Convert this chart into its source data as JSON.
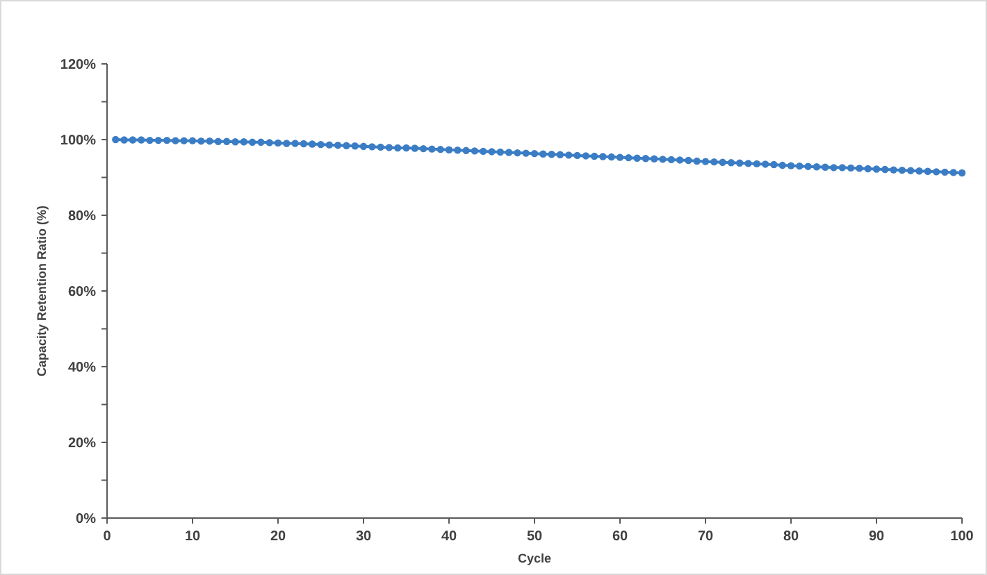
{
  "chart_data": {
    "type": "line",
    "xlabel": "Cycle",
    "ylabel": "Capacity Retention Ratio (%)",
    "x": [
      1,
      2,
      3,
      4,
      5,
      6,
      7,
      8,
      9,
      10,
      11,
      12,
      13,
      14,
      15,
      16,
      17,
      18,
      19,
      20,
      21,
      22,
      23,
      24,
      25,
      26,
      27,
      28,
      29,
      30,
      31,
      32,
      33,
      34,
      35,
      36,
      37,
      38,
      39,
      40,
      41,
      42,
      43,
      44,
      45,
      46,
      47,
      48,
      49,
      50,
      51,
      52,
      53,
      54,
      55,
      56,
      57,
      58,
      59,
      60,
      61,
      62,
      63,
      64,
      65,
      66,
      67,
      68,
      69,
      70,
      71,
      72,
      73,
      74,
      75,
      76,
      77,
      78,
      79,
      80,
      81,
      82,
      83,
      84,
      85,
      86,
      87,
      88,
      89,
      90,
      91,
      92,
      93,
      94,
      95,
      96,
      97,
      98,
      99,
      100
    ],
    "series": [
      {
        "color": "#3b7dc4",
        "values": [
          100.0,
          99.9,
          99.9,
          99.9,
          99.8,
          99.8,
          99.8,
          99.7,
          99.7,
          99.7,
          99.6,
          99.6,
          99.5,
          99.5,
          99.4,
          99.4,
          99.3,
          99.3,
          99.2,
          99.1,
          99.0,
          99.0,
          98.9,
          98.8,
          98.7,
          98.6,
          98.5,
          98.4,
          98.3,
          98.2,
          98.1,
          98.0,
          97.9,
          97.8,
          97.8,
          97.7,
          97.6,
          97.5,
          97.4,
          97.3,
          97.2,
          97.1,
          97.0,
          96.9,
          96.8,
          96.7,
          96.6,
          96.5,
          96.4,
          96.3,
          96.2,
          96.1,
          96.0,
          95.9,
          95.8,
          95.7,
          95.6,
          95.5,
          95.4,
          95.3,
          95.2,
          95.1,
          95.0,
          94.9,
          94.8,
          94.7,
          94.6,
          94.5,
          94.3,
          94.2,
          94.1,
          94.0,
          93.9,
          93.8,
          93.7,
          93.6,
          93.5,
          93.4,
          93.2,
          93.1,
          93.0,
          92.9,
          92.8,
          92.7,
          92.6,
          92.6,
          92.5,
          92.4,
          92.3,
          92.2,
          92.1,
          92.0,
          91.9,
          91.8,
          91.7,
          91.6,
          91.5,
          91.4,
          91.3,
          91.2
        ]
      }
    ],
    "xlim": [
      0,
      100
    ],
    "xticks": [
      0,
      10,
      20,
      30,
      40,
      50,
      60,
      70,
      80,
      90,
      100
    ],
    "ylim": [
      0,
      120
    ],
    "yticks": [
      {
        "value": 0,
        "label": "0%"
      },
      {
        "value": 10,
        "label": null
      },
      {
        "value": 20,
        "label": "20%"
      },
      {
        "value": 30,
        "label": null
      },
      {
        "value": 40,
        "label": "40%"
      },
      {
        "value": 50,
        "label": null
      },
      {
        "value": 60,
        "label": "60%"
      },
      {
        "value": 70,
        "label": null
      },
      {
        "value": 80,
        "label": "80%"
      },
      {
        "value": 90,
        "label": null
      },
      {
        "value": 100,
        "label": "100%"
      },
      {
        "value": 110,
        "label": null
      },
      {
        "value": 120,
        "label": "120%"
      }
    ],
    "marker": "circle",
    "line_style": "solid"
  }
}
